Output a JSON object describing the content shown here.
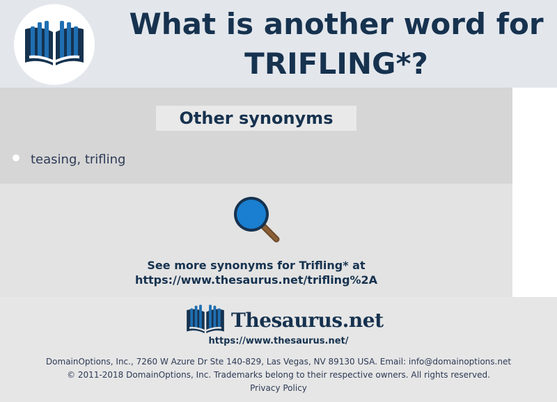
{
  "header": {
    "title_line1": "What is another word for",
    "title_line2": "TRIFLING*?",
    "logo_icon": "book-icon"
  },
  "synonyms": {
    "heading": "Other synonyms",
    "items": [
      {
        "text": "teasing, trifling"
      }
    ]
  },
  "more": {
    "icon": "magnifier-icon",
    "line1": "See more synonyms for Trifling* at",
    "line2": "https://www.thesaurus.net/trifling%2A"
  },
  "footer": {
    "brand_name": "Thesaurus.net",
    "brand_url": "https://www.thesaurus.net/",
    "address": "DomainOptions, Inc., 7260 W Azure Dr Ste 140-829, Las Vegas, NV 89130 USA. Email: info@domainoptions.net",
    "copyright": "© 2011-2018 DomainOptions, Inc. Trademarks belong to their respective owners. All rights reserved.",
    "privacy": "Privacy Policy"
  },
  "colors": {
    "navy": "#16324f",
    "book_blue": "#1f6fb2",
    "header_bg": "#e3e7ec",
    "synonyms_bg": "#d6d6d6",
    "more_bg": "#e3e3e3"
  }
}
